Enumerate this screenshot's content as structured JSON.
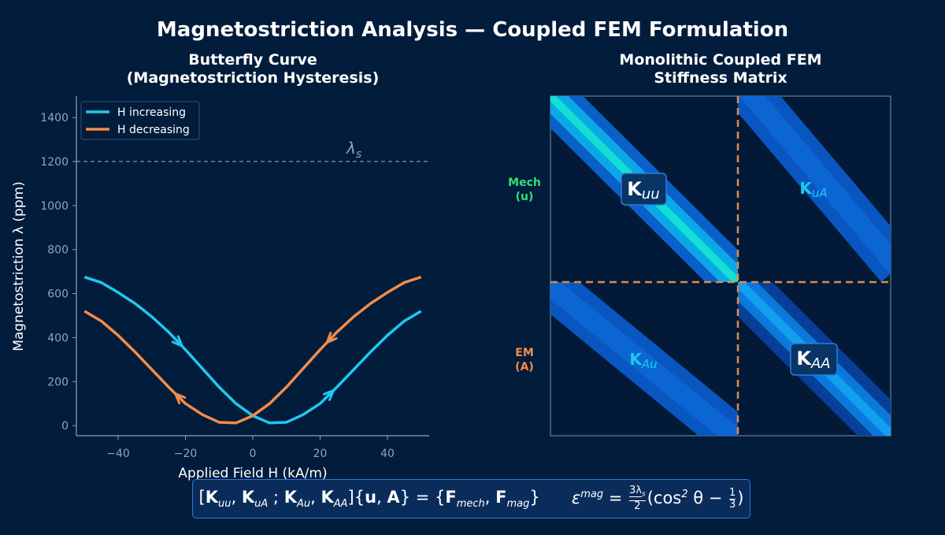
{
  "title": "Magnetostriction Analysis — Coupled FEM Formulation",
  "chart_data": {
    "type": "line",
    "title": [
      "Butterfly Curve",
      "(Magnetostriction Hysteresis)"
    ],
    "x_label": "Applied Field  H  (kA/m)",
    "y_label": "Magnetostriction  λ  (ppm)",
    "x": [
      -50,
      -45,
      -40,
      -35,
      -30,
      -25,
      -20,
      -15,
      -10,
      -5,
      0,
      5,
      10,
      15,
      20,
      25,
      30,
      35,
      40,
      45,
      50
    ],
    "series": [
      {
        "name": "H increasing",
        "color": "#1ec8f0",
        "values": [
          675,
          650,
          605,
          555,
          495,
          425,
          345,
          260,
          175,
          100,
          45,
          12,
          15,
          50,
          100,
          175,
          255,
          335,
          410,
          475,
          520
        ]
      },
      {
        "name": "H decreasing",
        "color": "#f28c4a",
        "values": [
          520,
          475,
          410,
          335,
          255,
          175,
          100,
          50,
          15,
          12,
          45,
          100,
          175,
          260,
          345,
          425,
          495,
          555,
          605,
          650,
          675
        ]
      }
    ],
    "xlim": [
      -52.4,
      52.4
    ],
    "ylim": [
      -46,
      1497
    ],
    "xticks": [
      {
        "value": -40,
        "label": "−40"
      },
      {
        "value": -20,
        "label": "−20"
      },
      0,
      20,
      40
    ],
    "yticks": [
      0,
      200,
      400,
      600,
      800,
      1000,
      1200,
      1400
    ],
    "legend": "upper left",
    "saturation_line": {
      "value": 1200,
      "label": "λ",
      "label_sub": "s"
    }
  },
  "matrix": {
    "title": [
      "Monolithic Coupled FEM",
      "Stiffness Matrix"
    ],
    "row_labels": [
      [
        "Mech",
        "(u)"
      ],
      [
        "EM",
        "(A)"
      ]
    ],
    "blocks": [
      {
        "symbol": "K",
        "sub": "uu"
      },
      {
        "symbol": "K",
        "sub": "uA"
      },
      {
        "symbol": "K",
        "sub": "Au"
      },
      {
        "symbol": "K",
        "sub": "AA"
      }
    ]
  },
  "formula": {
    "equation": [
      "[",
      "K",
      "uu",
      ", ",
      "K",
      "uA",
      " ; ",
      "K",
      "Au",
      ", ",
      "K",
      "AA",
      "]{",
      "u",
      ", ",
      "A",
      "} = {",
      "F",
      "mech",
      ", ",
      "F",
      "mag",
      "}"
    ],
    "strain": [
      "ε",
      "mag",
      " = ",
      "3λ",
      "s",
      "2",
      "(cos",
      "2",
      " θ − ",
      "1",
      "3",
      ")"
    ]
  }
}
